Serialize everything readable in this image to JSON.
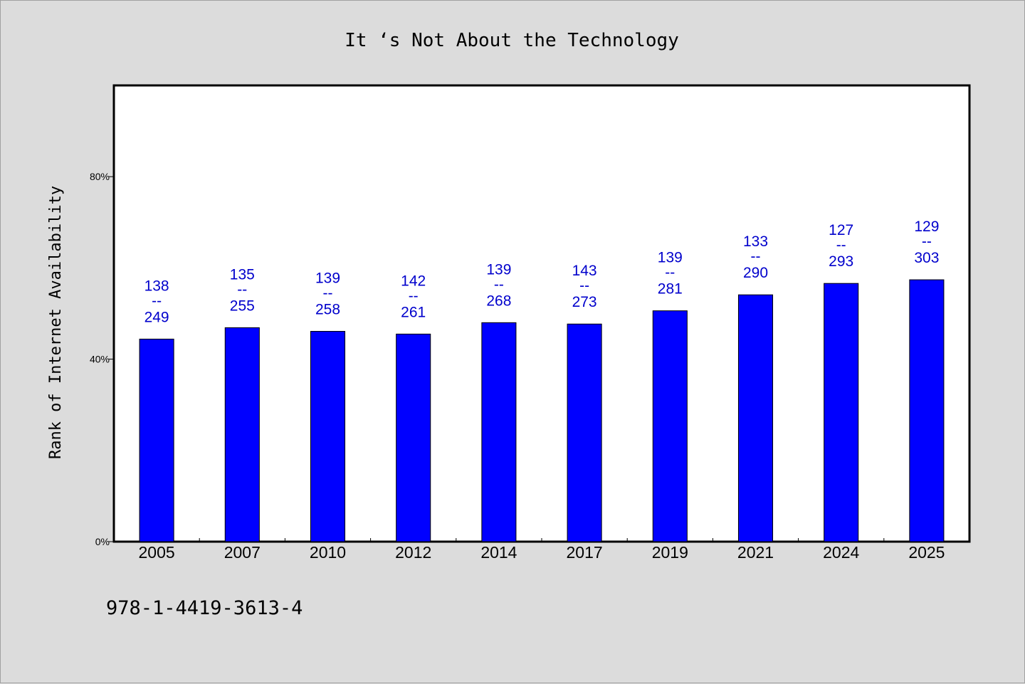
{
  "chart_data": {
    "type": "bar",
    "title": "It ‘s Not About the Technology",
    "xlabel": "",
    "ylabel": "Rank of Internet Availability",
    "categories": [
      "2005",
      "2007",
      "2010",
      "2012",
      "2014",
      "2017",
      "2019",
      "2021",
      "2024",
      "2025"
    ],
    "values": [
      44.4,
      46.9,
      46.1,
      45.5,
      48.0,
      47.7,
      50.6,
      54.1,
      56.6,
      57.4
    ],
    "data_labels": [
      {
        "top": "138",
        "mid": "--",
        "bottom": "249"
      },
      {
        "top": "135",
        "mid": "--",
        "bottom": "255"
      },
      {
        "top": "139",
        "mid": "--",
        "bottom": "258"
      },
      {
        "top": "142",
        "mid": "--",
        "bottom": "261"
      },
      {
        "top": "139",
        "mid": "--",
        "bottom": "268"
      },
      {
        "top": "143",
        "mid": "--",
        "bottom": "273"
      },
      {
        "top": "139",
        "mid": "--",
        "bottom": "281"
      },
      {
        "top": "133",
        "mid": "--",
        "bottom": "290"
      },
      {
        "top": "127",
        "mid": "--",
        "bottom": "293"
      },
      {
        "top": "129",
        "mid": "--",
        "bottom": "303"
      }
    ],
    "y_ticks": [
      0,
      40,
      80
    ],
    "y_tick_labels": [
      "0%",
      "40%",
      "80%"
    ],
    "ylim": [
      0,
      100
    ],
    "grid": false,
    "legend": "none",
    "bar_color": "#0000ff",
    "label_color": "#0000cc",
    "plot_background": "#ffffff",
    "page_background": "#dcdcdc"
  },
  "footer": {
    "isbn": "978-1-4419-3613-4"
  }
}
